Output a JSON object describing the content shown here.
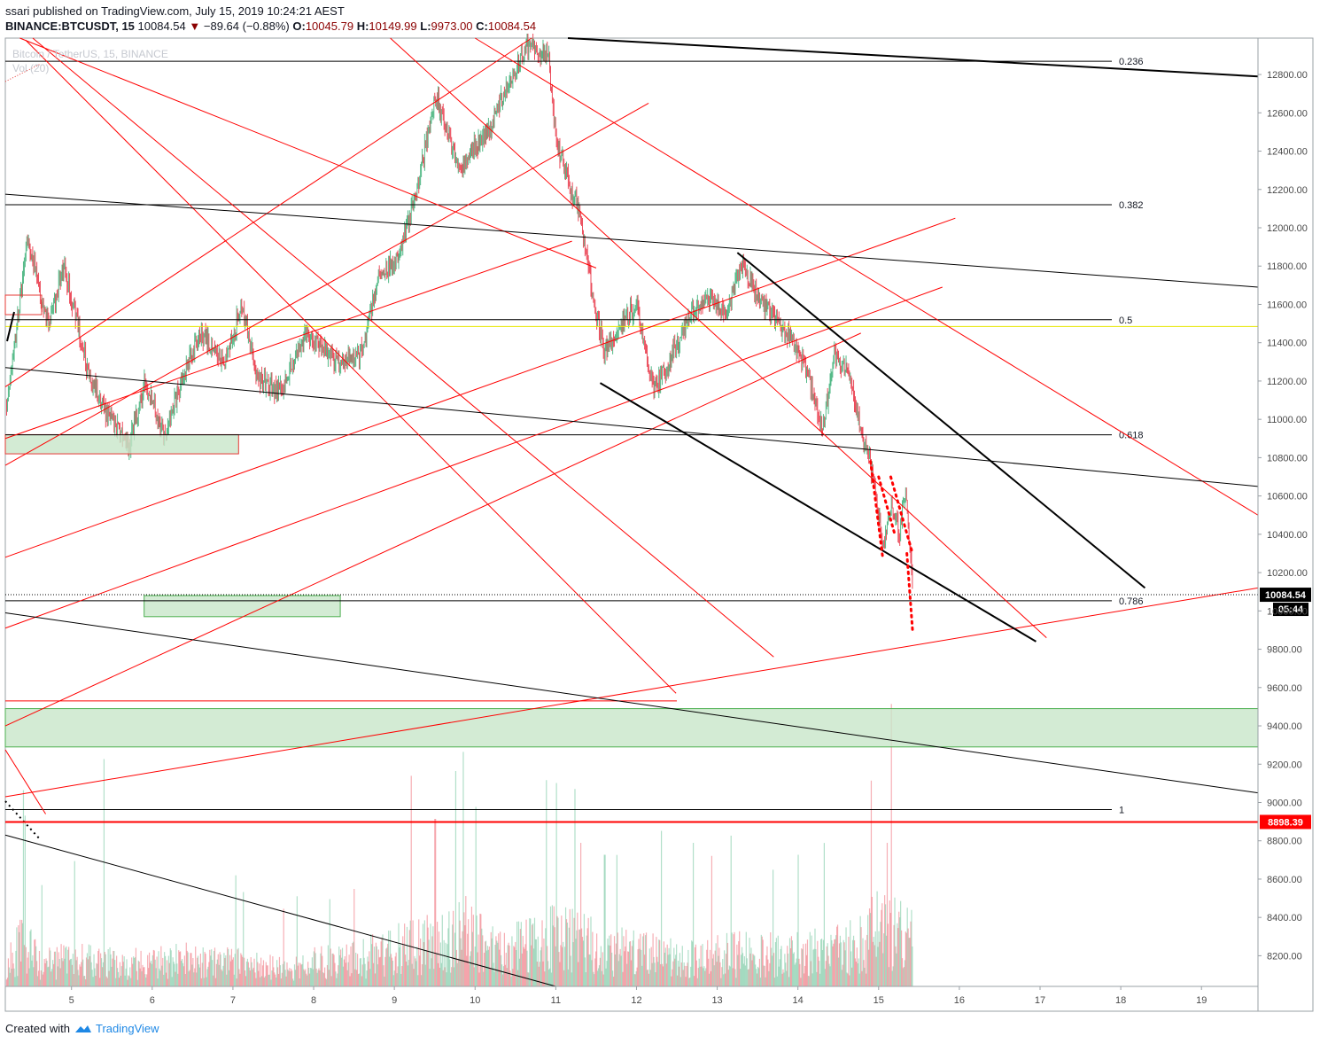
{
  "header": {
    "published_line": "ssari published on TradingView.com, July 15, 2019 10:24:21 AEST",
    "symbol": "BINANCE:BTCUSDT, 15",
    "last": "10084.54",
    "change_arrow": "▼",
    "change": "−89.64 (−0.88%)",
    "open_label": "O:",
    "open": "10045.79",
    "high_label": "H:",
    "high": "10149.99",
    "low_label": "L:",
    "low": "9973.00",
    "close_label": "C:",
    "close": "10084.54"
  },
  "legend": {
    "series_name": "Bitcoin / TetherUS, 15, BINANCE",
    "volume": "Vol (20)"
  },
  "footer": {
    "created_with": "Created with",
    "brand": "TradingView"
  },
  "colors": {
    "up_candle": "#53b987",
    "down_candle": "#eb4d5c",
    "trendline_red": "#ff0000",
    "trendline_black": "#000000",
    "support_zone": "#c8e6c9",
    "horizontal_red": "#ff0000",
    "fib_level": "#000000",
    "price_label_bg": "#000000",
    "horizontal_price_label_bg": "#ff0000"
  },
  "chart_data": {
    "type": "candlestick",
    "instrument": "BINANCE:BTCUSDT",
    "interval": "15",
    "x_ticks": [
      "5",
      "6",
      "7",
      "8",
      "9",
      "10",
      "11",
      "12",
      "13",
      "14",
      "15",
      "16",
      "17",
      "18",
      "19"
    ],
    "y_ticks": [
      "12800.00",
      "12600.00",
      "12400.00",
      "12200.00",
      "12000.00",
      "11800.00",
      "11600.00",
      "11400.00",
      "11200.00",
      "11000.00",
      "10800.00",
      "10600.00",
      "10400.00",
      "10200.00",
      "10000.00",
      "9800.00",
      "9600.00",
      "9400.00",
      "9200.00",
      "9000.00",
      "8800.00",
      "8600.00",
      "8400.00",
      "8200.00"
    ],
    "ylim": [
      8040,
      12990
    ],
    "xlim": [
      4.18,
      19.7
    ],
    "last_price": "10084.54",
    "countdown": "05:44",
    "horizontal_level": "8898.39",
    "fib_levels": [
      {
        "label": "0.236",
        "price": 12869
      },
      {
        "label": "0.382",
        "price": 12120
      },
      {
        "label": "0.5",
        "price": 11520
      },
      {
        "label": "0.618",
        "price": 10919
      },
      {
        "label": "0.786",
        "price": 10053
      },
      {
        "label": "1",
        "price": 8963
      }
    ],
    "candle_path": [
      [
        4.2,
        11100
      ],
      [
        4.35,
        11600
      ],
      [
        4.45,
        11950
      ],
      [
        4.7,
        11500
      ],
      [
        4.9,
        11800
      ],
      [
        5.2,
        11250
      ],
      [
        5.4,
        11050
      ],
      [
        5.7,
        10850
      ],
      [
        5.9,
        11200
      ],
      [
        6.15,
        10900
      ],
      [
        6.35,
        11200
      ],
      [
        6.6,
        11450
      ],
      [
        6.9,
        11300
      ],
      [
        7.1,
        11600
      ],
      [
        7.3,
        11200
      ],
      [
        7.6,
        11150
      ],
      [
        7.9,
        11450
      ],
      [
        8.3,
        11300
      ],
      [
        8.6,
        11350
      ],
      [
        8.8,
        11750
      ],
      [
        9.05,
        11850
      ],
      [
        9.3,
        12250
      ],
      [
        9.5,
        12700
      ],
      [
        9.8,
        12300
      ],
      [
        9.95,
        12400
      ],
      [
        10.2,
        12550
      ],
      [
        10.45,
        12800
      ],
      [
        10.65,
        12950
      ],
      [
        10.9,
        12900
      ],
      [
        11.0,
        12450
      ],
      [
        11.15,
        12250
      ],
      [
        11.3,
        12050
      ],
      [
        11.45,
        11650
      ],
      [
        11.6,
        11350
      ],
      [
        11.8,
        11500
      ],
      [
        12.0,
        11600
      ],
      [
        12.2,
        11150
      ],
      [
        12.4,
        11300
      ],
      [
        12.6,
        11500
      ],
      [
        12.85,
        11650
      ],
      [
        13.1,
        11550
      ],
      [
        13.3,
        11800
      ],
      [
        13.5,
        11650
      ],
      [
        13.75,
        11500
      ],
      [
        13.95,
        11400
      ],
      [
        14.1,
        11250
      ],
      [
        14.3,
        10950
      ],
      [
        14.45,
        11350
      ],
      [
        14.65,
        11200
      ],
      [
        14.8,
        10900
      ],
      [
        14.9,
        10750
      ],
      [
        15.05,
        10350
      ],
      [
        15.15,
        10550
      ],
      [
        15.25,
        10400
      ],
      [
        15.33,
        10650
      ],
      [
        15.38,
        10350
      ],
      [
        15.42,
        10084.54
      ]
    ],
    "volume_profile": [
      [
        4.2,
        0.35
      ],
      [
        4.4,
        0.55
      ],
      [
        4.6,
        0.3
      ],
      [
        5.0,
        0.35
      ],
      [
        5.4,
        0.3
      ],
      [
        6.0,
        0.3
      ],
      [
        6.5,
        0.35
      ],
      [
        7.0,
        0.3
      ],
      [
        7.5,
        0.25
      ],
      [
        8.0,
        0.3
      ],
      [
        8.5,
        0.35
      ],
      [
        8.9,
        0.45
      ],
      [
        9.2,
        0.55
      ],
      [
        9.6,
        0.55
      ],
      [
        9.9,
        0.7
      ],
      [
        10.3,
        0.45
      ],
      [
        10.8,
        0.55
      ],
      [
        11.0,
        0.75
      ],
      [
        11.4,
        0.55
      ],
      [
        11.8,
        0.45
      ],
      [
        12.3,
        0.4
      ],
      [
        12.8,
        0.35
      ],
      [
        13.3,
        0.45
      ],
      [
        13.8,
        0.4
      ],
      [
        14.3,
        0.45
      ],
      [
        14.8,
        0.55
      ],
      [
        15.0,
        0.8
      ],
      [
        15.42,
        0.6
      ]
    ],
    "volume_spikes": [
      [
        4.4,
        0.82
      ],
      [
        5.4,
        0.95
      ],
      [
        9.2,
        0.88
      ],
      [
        9.5,
        0.7
      ],
      [
        9.75,
        0.9
      ],
      [
        9.85,
        0.98
      ],
      [
        10.0,
        0.75
      ],
      [
        11.0,
        0.85
      ],
      [
        11.3,
        0.6
      ],
      [
        11.6,
        0.55
      ],
      [
        12.3,
        0.65
      ],
      [
        12.7,
        0.6
      ],
      [
        14.0,
        0.55
      ],
      [
        14.9,
        0.86
      ],
      [
        15.1,
        0.6
      ],
      [
        15.42,
        0.55
      ]
    ],
    "red_trendlines": [
      [
        [
          4.36,
          12990
        ],
        [
          11.5,
          11790
        ]
      ],
      [
        [
          4.18,
          11170
        ],
        [
          10.7,
          12990
        ]
      ],
      [
        [
          4.18,
          10760
        ],
        [
          12.15,
          12650
        ]
      ],
      [
        [
          4.18,
          10900
        ],
        [
          11.2,
          11930
        ]
      ],
      [
        [
          4.18,
          10280
        ],
        [
          15.95,
          12050
        ]
      ],
      [
        [
          4.18,
          9910
        ],
        [
          15.79,
          11690
        ]
      ],
      [
        [
          4.18,
          9400
        ],
        [
          14.78,
          11450
        ]
      ],
      [
        [
          4.18,
          9030
        ],
        [
          19.7,
          10120
        ]
      ],
      [
        [
          4.43,
          12980
        ],
        [
          12.49,
          9570
        ]
      ],
      [
        [
          4.52,
          12990
        ],
        [
          13.7,
          9760
        ]
      ],
      [
        [
          8.95,
          12990
        ],
        [
          17.08,
          9860
        ]
      ],
      [
        [
          10.0,
          12990
        ],
        [
          19.7,
          10500
        ]
      ],
      [
        [
          4.18,
          9275
        ],
        [
          4.68,
          8940
        ]
      ],
      [
        [
          4.18,
          9530
        ],
        [
          12.5,
          9530
        ]
      ]
    ],
    "black_trendlines": [
      [
        [
          4.18,
          12175
        ],
        [
          19.7,
          11690
        ]
      ],
      [
        [
          4.18,
          11270
        ],
        [
          19.7,
          10650
        ]
      ],
      [
        [
          4.18,
          9990
        ],
        [
          19.7,
          9050
        ]
      ],
      [
        [
          4.18,
          8830
        ],
        [
          11.0,
          8040
        ]
      ],
      [
        [
          11.15,
          12990
        ],
        [
          19.7,
          12790
        ]
      ],
      [
        [
          13.25,
          11870
        ],
        [
          18.3,
          10120
        ]
      ],
      [
        [
          11.55,
          11190
        ],
        [
          16.95,
          9840
        ]
      ]
    ],
    "dotted_red_lines": [
      [
        [
          14.9,
          10780
        ],
        [
          15.05,
          10280
        ]
      ],
      [
        [
          15.0,
          10700
        ],
        [
          15.2,
          10400
        ]
      ],
      [
        [
          15.15,
          10700
        ],
        [
          15.42,
          10300
        ]
      ],
      [
        [
          15.35,
          10300
        ],
        [
          15.42,
          9900
        ]
      ]
    ],
    "zones": [
      {
        "x0": 4.18,
        "x1": 7.07,
        "y0": 10920,
        "y1": 10820
      },
      {
        "x0": 5.9,
        "x1": 8.33,
        "y0": 10080,
        "y1": 9970
      },
      {
        "x0": 4.18,
        "x1": 19.7,
        "y0": 9490,
        "y1": 9290
      }
    ]
  }
}
